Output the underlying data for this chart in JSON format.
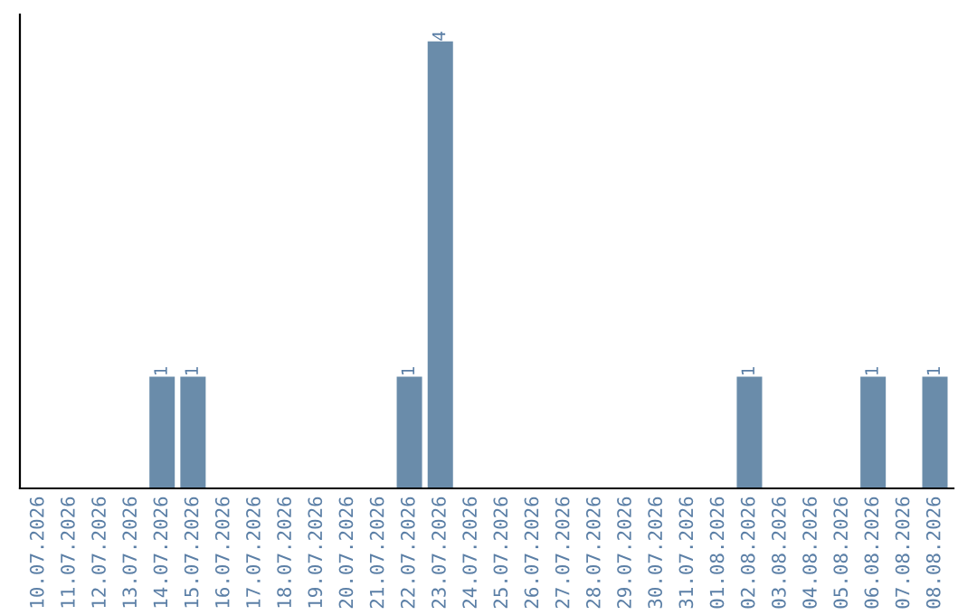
{
  "chart_data": {
    "type": "bar",
    "categories": [
      "10.07.2026",
      "11.07.2026",
      "12.07.2026",
      "13.07.2026",
      "14.07.2026",
      "15.07.2026",
      "16.07.2026",
      "17.07.2026",
      "18.07.2026",
      "19.07.2026",
      "20.07.2026",
      "21.07.2026",
      "22.07.2026",
      "23.07.2026",
      "24.07.2026",
      "25.07.2026",
      "26.07.2026",
      "27.07.2026",
      "28.07.2026",
      "29.07.2026",
      "30.07.2026",
      "31.07.2026",
      "01.08.2026",
      "02.08.2026",
      "03.08.2026",
      "04.08.2026",
      "05.08.2026",
      "06.08.2026",
      "07.08.2026",
      "08.08.2026"
    ],
    "values": [
      0,
      0,
      0,
      0,
      1,
      1,
      0,
      0,
      0,
      0,
      0,
      0,
      1,
      4,
      0,
      0,
      0,
      0,
      0,
      0,
      0,
      0,
      0,
      1,
      0,
      0,
      0,
      1,
      0,
      1
    ],
    "value_labels": [
      null,
      null,
      null,
      null,
      "1",
      "1",
      null,
      null,
      null,
      null,
      null,
      null,
      "1",
      "4",
      null,
      null,
      null,
      null,
      null,
      null,
      null,
      null,
      null,
      "1",
      null,
      null,
      null,
      "1",
      null,
      "1"
    ],
    "color": "#6a8caa",
    "grid": false,
    "legend": false
  }
}
